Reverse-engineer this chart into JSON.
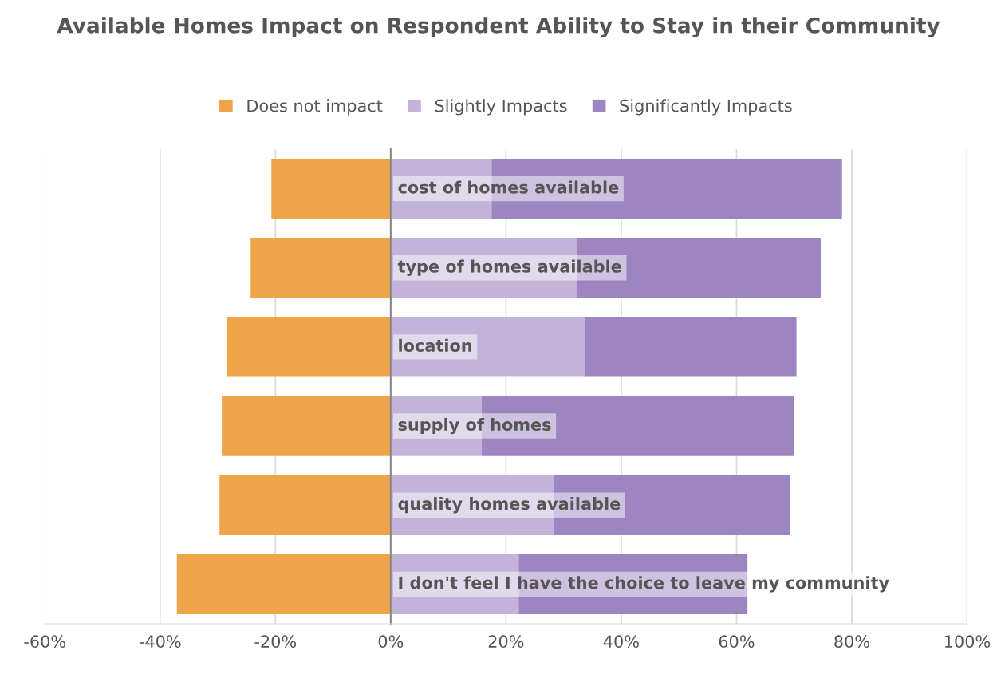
{
  "chart_data": {
    "type": "bar",
    "orientation": "horizontal",
    "stacked": true,
    "title": "Available Homes Impact on Respondent Ability to Stay in their Community",
    "categories": [
      "cost of homes available",
      "type of homes available",
      "location",
      "supply of homes",
      "quality homes available",
      "I don't feel I have the choice to leave my community"
    ],
    "series": [
      {
        "name": "Does not impact",
        "color": "#f0a44a",
        "values": [
          -20.7,
          -24.3,
          -28.5,
          -29.3,
          -29.7,
          -37.1
        ]
      },
      {
        "name": "Slightly Impacts",
        "color": "#c3b3d9",
        "values": [
          17.5,
          32.2,
          33.6,
          15.8,
          28.2,
          22.2
        ]
      },
      {
        "name": "Significantly Impacts",
        "color": "#9c85c0",
        "values": [
          60.8,
          42.4,
          36.8,
          54.1,
          41.1,
          39.7
        ]
      }
    ],
    "xlim": [
      -60,
      100
    ],
    "xticks": [
      {
        "value": -60,
        "label": "-60%"
      },
      {
        "value": -40,
        "label": "-40%"
      },
      {
        "value": -20,
        "label": "-20%"
      },
      {
        "value": 0,
        "label": "0%"
      },
      {
        "value": 20,
        "label": "20%"
      },
      {
        "value": 40,
        "label": "40%"
      },
      {
        "value": 60,
        "label": "60%"
      },
      {
        "value": 80,
        "label": "80%"
      },
      {
        "value": 100,
        "label": "100%"
      }
    ],
    "grid": "x",
    "legend": "top"
  }
}
